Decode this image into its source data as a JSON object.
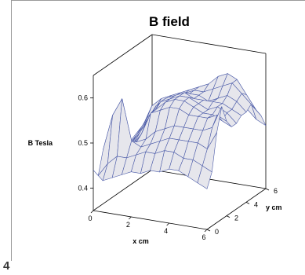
{
  "panel_number": "4",
  "chart_data": {
    "type": "surface",
    "title": "B field",
    "xlabel": "x cm",
    "ylabel": "y cm",
    "zlabel": "B Tesla",
    "xlim": [
      0,
      6
    ],
    "ylim": [
      0,
      6
    ],
    "zlim": [
      0.35,
      0.65
    ],
    "x_ticks": [
      "0",
      "2",
      "4",
      "6"
    ],
    "y_ticks": [
      "0",
      "2",
      "4",
      "6"
    ],
    "z_ticks": [
      "0.4",
      "0.5",
      "0.6"
    ],
    "grid": false,
    "x": [
      0,
      0.5,
      1,
      1.5,
      2,
      2.5,
      3,
      3.5,
      4,
      4.5,
      5,
      5.5,
      6
    ],
    "y": [
      0,
      0.5,
      1,
      1.5,
      2,
      2.5,
      3,
      3.5,
      4,
      4.5,
      5,
      5.5,
      6
    ],
    "z": [
      [
        0.44,
        0.42,
        0.47,
        0.44,
        0.45,
        0.43,
        0.46,
        0.44,
        0.45,
        0.43,
        0.46,
        0.47,
        0.49
      ],
      [
        0.42,
        0.45,
        0.55,
        0.46,
        0.47,
        0.45,
        0.46,
        0.47,
        0.48,
        0.49,
        0.51,
        0.5,
        0.5
      ],
      [
        0.43,
        0.47,
        0.59,
        0.48,
        0.47,
        0.48,
        0.49,
        0.5,
        0.51,
        0.52,
        0.53,
        0.52,
        0.51
      ],
      [
        0.44,
        0.47,
        0.5,
        0.49,
        0.5,
        0.52,
        0.53,
        0.54,
        0.54,
        0.53,
        0.54,
        0.53,
        0.52
      ],
      [
        0.45,
        0.48,
        0.49,
        0.5,
        0.55,
        0.55,
        0.56,
        0.56,
        0.55,
        0.55,
        0.55,
        0.54,
        0.53
      ],
      [
        0.45,
        0.49,
        0.5,
        0.52,
        0.56,
        0.57,
        0.57,
        0.57,
        0.56,
        0.56,
        0.56,
        0.55,
        0.54
      ],
      [
        0.46,
        0.49,
        0.51,
        0.53,
        0.57,
        0.58,
        0.58,
        0.58,
        0.57,
        0.57,
        0.57,
        0.56,
        0.55
      ],
      [
        0.46,
        0.5,
        0.52,
        0.54,
        0.57,
        0.58,
        0.58,
        0.57,
        0.57,
        0.57,
        0.58,
        0.57,
        0.55
      ],
      [
        0.47,
        0.5,
        0.52,
        0.54,
        0.56,
        0.57,
        0.57,
        0.57,
        0.56,
        0.58,
        0.6,
        0.58,
        0.55
      ],
      [
        0.47,
        0.49,
        0.52,
        0.54,
        0.56,
        0.56,
        0.56,
        0.57,
        0.57,
        0.59,
        0.61,
        0.58,
        0.54
      ],
      [
        0.46,
        0.49,
        0.52,
        0.54,
        0.56,
        0.56,
        0.57,
        0.57,
        0.58,
        0.6,
        0.6,
        0.56,
        0.52
      ],
      [
        0.45,
        0.48,
        0.51,
        0.55,
        0.57,
        0.55,
        0.56,
        0.56,
        0.57,
        0.58,
        0.57,
        0.54,
        0.5
      ],
      [
        0.44,
        0.47,
        0.55,
        0.6,
        0.56,
        0.54,
        0.54,
        0.55,
        0.55,
        0.56,
        0.54,
        0.52,
        0.49
      ]
    ],
    "colors": {
      "surface_fill": "#e6e6ec",
      "mesh_line": "#4a5aa8",
      "axis_line": "#000000"
    }
  }
}
